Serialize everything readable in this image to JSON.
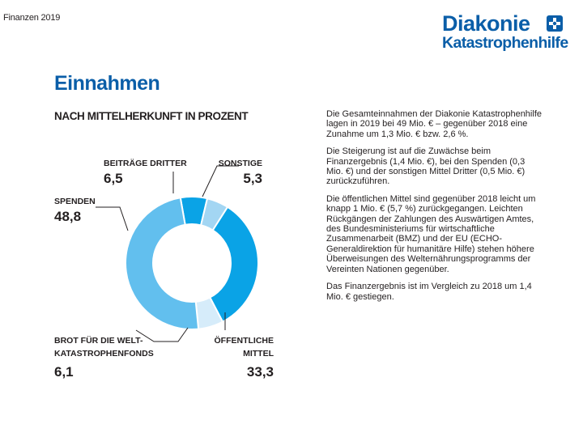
{
  "header": {
    "label": "Finanzen 2019",
    "logo_name": "Diakonie",
    "logo_sub": "Katastrophenhilfe",
    "logo_mark": "cross-in-circle",
    "logo_color": "#0a5ea8"
  },
  "section": {
    "title": "Einnahmen",
    "title_color": "#0a5ea8"
  },
  "chart_data": {
    "type": "pie",
    "subtype": "donut",
    "title": "NACH MITTELHERKUNFT IN PROZENT",
    "unit": "%",
    "slices": [
      {
        "name": "BEITRÄGE DRITTER",
        "value": 6.5,
        "value_label": "6,5",
        "color": "#0aa3e6"
      },
      {
        "name": "SONSTIGE",
        "value": 5.3,
        "value_label": "5,3",
        "color": "#a3d6f3"
      },
      {
        "name": "ÖFFENTLICHE MITTEL",
        "value": 33.3,
        "value_label": "33,3",
        "color": "#0aa3e6"
      },
      {
        "name": "BROT FÜR DIE WELT-KATASTROPHENFONDS",
        "value": 6.1,
        "value_label": "6,1",
        "color": "#d6ecfa"
      },
      {
        "name": "SPENDEN",
        "value": 48.8,
        "value_label": "48,8",
        "color": "#62bfee"
      }
    ],
    "labels": {
      "beitraege_name": "BEITRÄGE DRITTER",
      "sonstige_name": "SONSTIGE",
      "spenden_name": "SPENDEN",
      "brot_name_1": "BROT FÜR DIE WELT-",
      "brot_name_2": "KATASTROPHENFONDS",
      "oeffentliche_name_1": "ÖFFENTLICHE",
      "oeffentliche_name_2": "MITTEL"
    }
  },
  "body": {
    "paragraphs": [
      "Die Gesamteinnahmen der Diakonie Katastrophenhilfe lagen in 2019 bei 49 Mio. € – gegenüber 2018 eine Zunahme um 1,3 Mio. € bzw. 2,6 %.",
      "Die Steigerung ist auf die Zuwächse beim Finanzergebnis (1,4 Mio. €), bei den Spenden (0,3 Mio. €) und der sonstigen Mittel Dritter (0,5 Mio. €) zurückzuführen.",
      "Die öffentlichen Mittel sind gegenüber 2018 leicht um knapp 1 Mio. € (5,7 %) zurückgegangen. Leichten Rückgängen der Zahlungen des Auswärtigen Amtes, des Bundesministeriums für wirtschaftliche Zusammenarbeit (BMZ) und der EU (ECHO-Generaldirektion für humanitäre Hilfe) stehen höhere Überweisungen des Welternährungsprogramms der Vereinten Nationen gegenüber.",
      "Das Finanzergebnis ist im Vergleich zu 2018 um 1,4 Mio. € gestiegen."
    ]
  }
}
